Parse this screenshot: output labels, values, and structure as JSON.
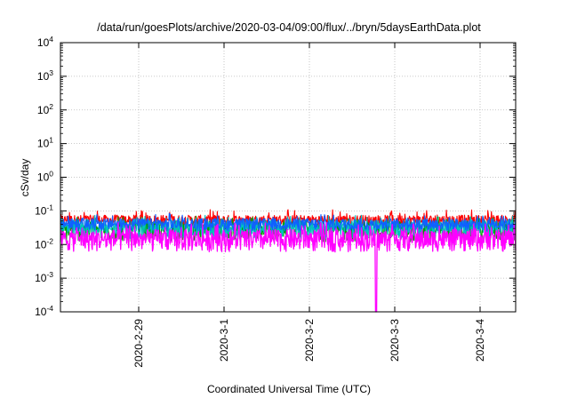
{
  "chart_data": {
    "type": "line",
    "title": "/data/run/goesPlots/archive/2020-03-04/09:00/flux/../bryn/5daysEarthData.plot",
    "xlabel": "Coordinated Universal Time (UTC)",
    "ylabel": "cSv/day",
    "x_range": [
      "2020-02-28T02:00",
      "2020-03-04T10:00"
    ],
    "x_ticks": [
      "2020-2-29",
      "2020-3-1",
      "2020-3-2",
      "2020-3-3",
      "2020-3-4"
    ],
    "y_scale": "log",
    "ylim": [
      0.0001,
      10000
    ],
    "y_ticks": [
      {
        "base": "10",
        "exp": "-4"
      },
      {
        "base": "10",
        "exp": "-3"
      },
      {
        "base": "10",
        "exp": "-2"
      },
      {
        "base": "10",
        "exp": "-1"
      },
      {
        "base": "10",
        "exp": "0"
      },
      {
        "base": "10",
        "exp": "1"
      },
      {
        "base": "10",
        "exp": "2"
      },
      {
        "base": "10",
        "exp": "3"
      },
      {
        "base": "10",
        "exp": "4"
      }
    ],
    "grid": true,
    "legend": "none",
    "series": [
      {
        "color": "#ff0000",
        "low": 0.035,
        "high": 0.075,
        "spike_max": 0.11
      },
      {
        "color": "#00a000",
        "low": 0.012,
        "high": 0.05,
        "spike_max": 0.07
      },
      {
        "color": "#00c0c0",
        "low": 0.015,
        "high": 0.055,
        "spike_max": 0.075
      },
      {
        "color": "#1060ff",
        "low": 0.025,
        "high": 0.06,
        "spike_max": 0.085
      },
      {
        "color": "#ff00ff",
        "low": 0.006,
        "high": 0.028,
        "spike_max": 0.045,
        "dropout": {
          "from": "2020-03-02T18:30",
          "to": "2020-03-02T19:00",
          "value": 0.0001
        }
      }
    ]
  }
}
